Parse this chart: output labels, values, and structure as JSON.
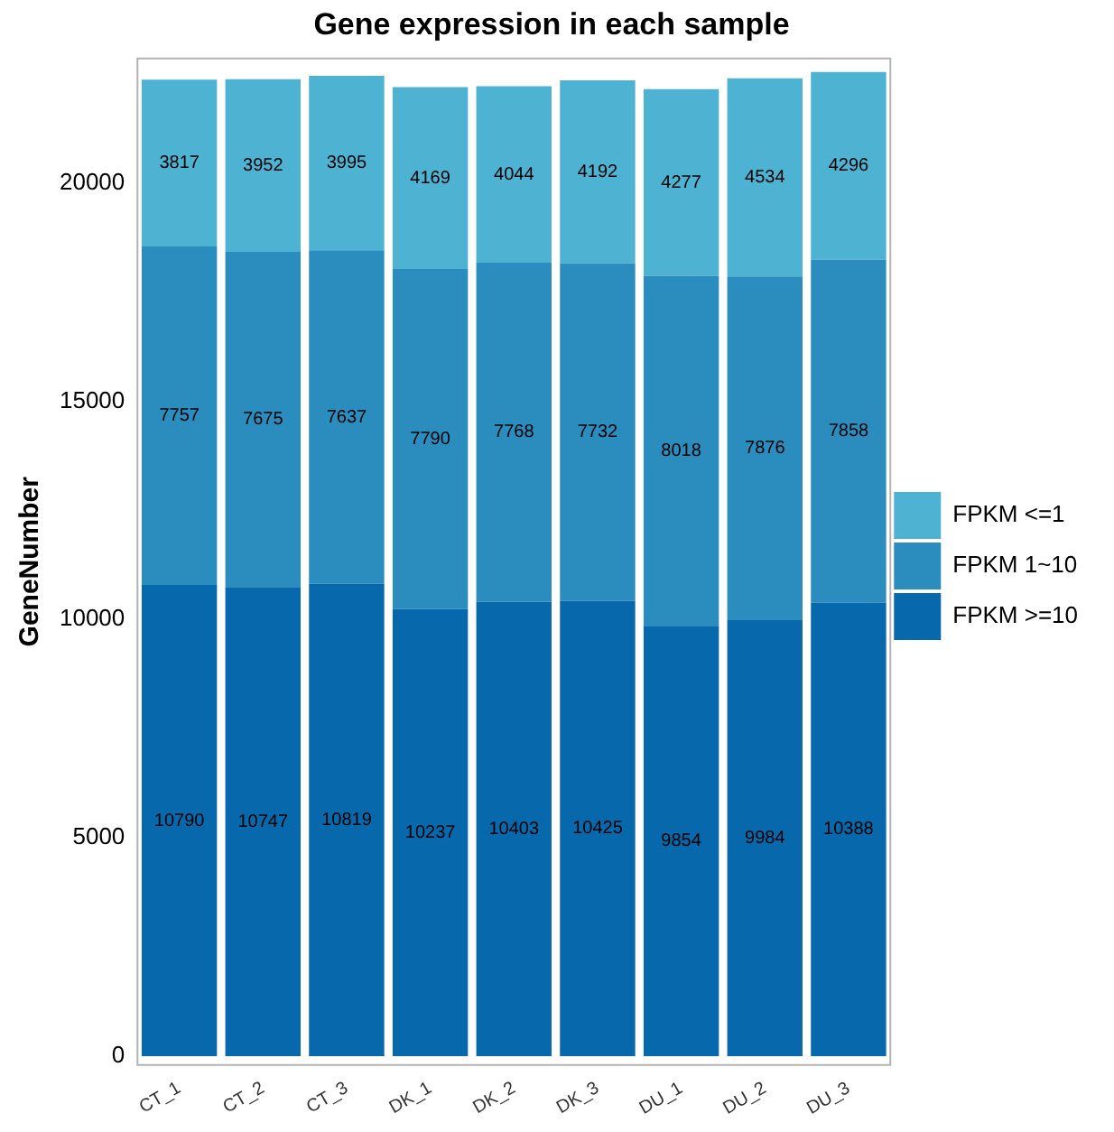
{
  "chart_data": {
    "type": "bar",
    "title": "Gene expression in each sample",
    "ylabel": "GeneNumber",
    "categories": [
      "CT_1",
      "CT_2",
      "CT_3",
      "DK_1",
      "DK_2",
      "DK_3",
      "DU_1",
      "DU_2",
      "DU_3"
    ],
    "series": [
      {
        "name": "FPKM >=10",
        "color": "#0868ac",
        "values": [
          10790,
          10747,
          10819,
          10237,
          10403,
          10425,
          9854,
          9984,
          10388
        ]
      },
      {
        "name": "FPKM 1~10",
        "color": "#2b8cbe",
        "values": [
          7757,
          7675,
          7637,
          7790,
          7768,
          7732,
          8018,
          7876,
          7858
        ]
      },
      {
        "name": "FPKM <=1",
        "color": "#4eb3d3",
        "values": [
          3817,
          3952,
          3995,
          4169,
          4044,
          4192,
          4277,
          4534,
          4296
        ]
      }
    ],
    "stacked": true,
    "ylim": [
      -200,
      22850
    ],
    "yticks": [
      0,
      5000,
      10000,
      15000,
      20000
    ],
    "grid": false,
    "legend": "right",
    "data_labels": true
  }
}
